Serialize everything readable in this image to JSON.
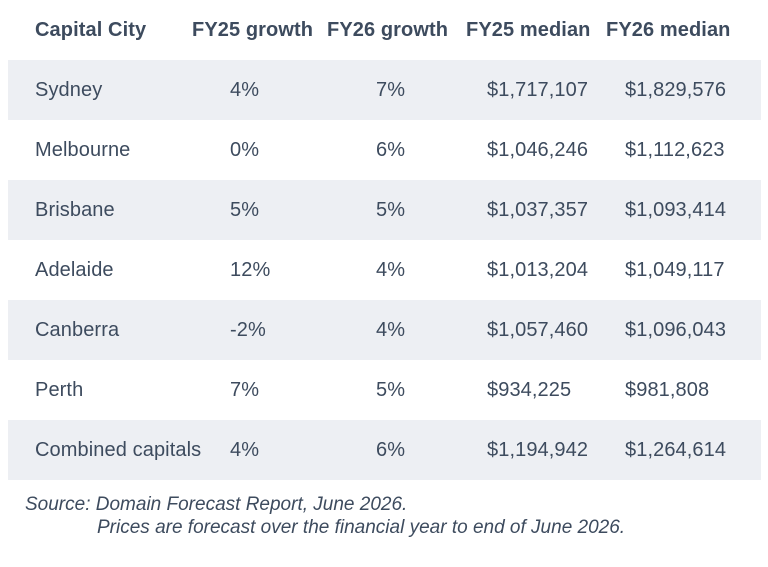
{
  "colors": {
    "text": "#3d4b5e",
    "row_shaded_bg": "#edeff3",
    "page_bg": "#ffffff"
  },
  "table": {
    "headers": [
      "Capital City",
      "FY25 growth",
      "FY26 growth",
      "FY25 median",
      "FY26 median"
    ],
    "rows": [
      {
        "city": "Sydney",
        "fy25_growth": "4%",
        "fy26_growth": "7%",
        "fy25_median": "$1,717,107",
        "fy26_median": "$1,829,576"
      },
      {
        "city": "Melbourne",
        "fy25_growth": "0%",
        "fy26_growth": "6%",
        "fy25_median": "$1,046,246",
        "fy26_median": "$1,112,623"
      },
      {
        "city": "Brisbane",
        "fy25_growth": "5%",
        "fy26_growth": "5%",
        "fy25_median": "$1,037,357",
        "fy26_median": "$1,093,414"
      },
      {
        "city": "Adelaide",
        "fy25_growth": "12%",
        "fy26_growth": "4%",
        "fy25_median": "$1,013,204",
        "fy26_median": "$1,049,117"
      },
      {
        "city": "Canberra",
        "fy25_growth": "-2%",
        "fy26_growth": "4%",
        "fy25_median": "$1,057,460",
        "fy26_median": "$1,096,043"
      },
      {
        "city": "Perth",
        "fy25_growth": "7%",
        "fy26_growth": "5%",
        "fy25_median": "$934,225",
        "fy26_median": "$981,808"
      },
      {
        "city": "Combined capitals",
        "fy25_growth": "4%",
        "fy26_growth": "6%",
        "fy25_median": "$1,194,942",
        "fy26_median": "$1,264,614"
      }
    ]
  },
  "footer": {
    "line1": "Source: Domain Forecast Report, June 2026.",
    "line2": "Prices are forecast over the financial year to end of June 2026."
  },
  "chart_data": {
    "type": "table",
    "title": "",
    "columns": [
      "Capital City",
      "FY25 growth",
      "FY26 growth",
      "FY25 median",
      "FY26 median"
    ],
    "rows": [
      [
        "Sydney",
        "4%",
        "7%",
        "$1,717,107",
        "$1,829,576"
      ],
      [
        "Melbourne",
        "0%",
        "6%",
        "$1,046,246",
        "$1,112,623"
      ],
      [
        "Brisbane",
        "5%",
        "5%",
        "$1,037,357",
        "$1,093,414"
      ],
      [
        "Adelaide",
        "12%",
        "4%",
        "$1,013,204",
        "$1,049,117"
      ],
      [
        "Canberra",
        "-2%",
        "4%",
        "$1,057,460",
        "$1,096,043"
      ],
      [
        "Perth",
        "7%",
        "5%",
        "$934,225",
        "$981,808"
      ],
      [
        "Combined capitals",
        "4%",
        "6%",
        "$1,194,942",
        "$1,264,614"
      ]
    ],
    "growth_values_pct": {
      "fy25": [
        4,
        0,
        5,
        12,
        -2,
        7,
        4
      ],
      "fy26": [
        7,
        6,
        5,
        4,
        4,
        5,
        6
      ]
    },
    "median_values_aud": {
      "fy25": [
        1717107,
        1046246,
        1037357,
        1013204,
        1057460,
        934225,
        1194942
      ],
      "fy26": [
        1829576,
        1112623,
        1093414,
        1049117,
        1096043,
        981808,
        1264614
      ]
    },
    "notes": [
      "Source: Domain Forecast Report, June 2026.",
      "Prices are forecast over the financial year to end of June 2026."
    ]
  }
}
